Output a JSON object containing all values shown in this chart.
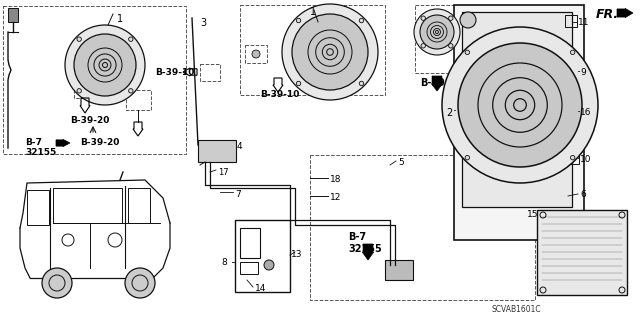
{
  "bg_color": "#f0f0f0",
  "fig_width": 6.4,
  "fig_height": 3.19,
  "part_code": "SCVAB1601C",
  "fr_label": "FR.",
  "line_color": "#111111",
  "text_color": "#111111",
  "gray": "#888888",
  "darkgray": "#555555",
  "labels": {
    "B-39-10": "B-39-10",
    "B-39-20": "B-39-20",
    "B-39": "B-39",
    "B-7_32155": "B-7\n32155"
  },
  "numbers": [
    "1",
    "2",
    "3",
    "4",
    "5",
    "6",
    "7",
    "8",
    "9",
    "10",
    "11",
    "12",
    "13",
    "14",
    "15",
    "16",
    "17",
    "18"
  ]
}
